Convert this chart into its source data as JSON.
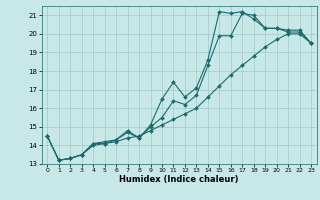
{
  "xlabel": "Humidex (Indice chaleur)",
  "bg_color": "#c8e8e8",
  "grid_color": "#a0c8c8",
  "line_color": "#1a6b6b",
  "xlim": [
    -0.5,
    23.5
  ],
  "ylim": [
    13,
    21.5
  ],
  "xticks": [
    0,
    1,
    2,
    3,
    4,
    5,
    6,
    7,
    8,
    9,
    10,
    11,
    12,
    13,
    14,
    15,
    16,
    17,
    18,
    19,
    20,
    21,
    22,
    23
  ],
  "yticks": [
    13,
    14,
    15,
    16,
    17,
    18,
    19,
    20,
    21
  ],
  "line1_x": [
    0,
    1,
    2,
    3,
    4,
    5,
    6,
    7,
    8,
    9,
    10,
    11,
    12,
    13,
    14,
    15,
    16,
    17,
    18,
    19,
    20,
    21,
    22,
    23
  ],
  "line1_y": [
    14.5,
    13.2,
    13.3,
    13.5,
    14.1,
    14.1,
    14.3,
    14.7,
    14.4,
    15.0,
    15.5,
    16.4,
    16.2,
    16.7,
    18.3,
    19.9,
    19.9,
    21.1,
    21.0,
    20.3,
    20.3,
    20.1,
    20.1,
    19.5
  ],
  "line2_x": [
    0,
    1,
    2,
    3,
    4,
    5,
    6,
    7,
    8,
    9,
    10,
    11,
    12,
    13,
    14,
    15,
    16,
    17,
    18,
    19,
    20,
    21,
    22,
    23
  ],
  "line2_y": [
    14.5,
    13.2,
    13.3,
    13.5,
    14.1,
    14.2,
    14.3,
    14.8,
    14.4,
    15.1,
    16.5,
    17.4,
    16.6,
    17.1,
    18.6,
    21.2,
    21.1,
    21.2,
    20.8,
    20.3,
    20.3,
    20.2,
    20.2,
    19.5
  ],
  "line3_x": [
    0,
    1,
    2,
    3,
    4,
    5,
    6,
    7,
    8,
    9,
    10,
    11,
    12,
    13,
    14,
    15,
    16,
    17,
    18,
    19,
    20,
    21,
    22,
    23
  ],
  "line3_y": [
    14.5,
    13.2,
    13.3,
    13.5,
    14.0,
    14.1,
    14.2,
    14.4,
    14.5,
    14.8,
    15.1,
    15.4,
    15.7,
    16.0,
    16.6,
    17.2,
    17.8,
    18.3,
    18.8,
    19.3,
    19.7,
    20.0,
    20.0,
    19.5
  ],
  "marker": "D",
  "markersize": 2.0,
  "linewidth": 0.8
}
